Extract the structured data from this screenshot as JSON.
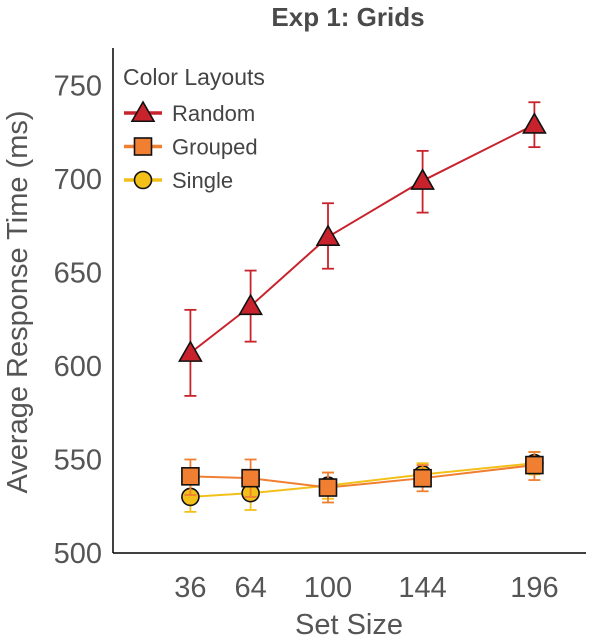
{
  "chart_data": {
    "type": "line",
    "title": "Exp 1: Grids",
    "xlabel": "Set Size",
    "ylabel": "Average Response Time (ms)",
    "x": [
      36,
      64,
      100,
      144,
      196
    ],
    "xlim": [
      0,
      220
    ],
    "ylim": [
      500,
      770
    ],
    "yticks": [
      500,
      550,
      600,
      650,
      700,
      750
    ],
    "grid": false,
    "legend": {
      "title": "Color Layouts",
      "position": "top-left"
    },
    "series": [
      {
        "name": "Random",
        "marker": "triangle",
        "color": "#c8232c",
        "values": [
          607,
          632,
          669,
          699,
          729
        ],
        "err_low": [
          584,
          613,
          652,
          682,
          717
        ],
        "err_high": [
          630,
          651,
          687,
          715,
          741
        ]
      },
      {
        "name": "Grouped",
        "marker": "square",
        "color": "#f07f32",
        "values": [
          541,
          540,
          535,
          540,
          547
        ],
        "err_low": [
          531,
          530,
          527,
          533,
          539
        ],
        "err_high": [
          550,
          550,
          543,
          547,
          554
        ]
      },
      {
        "name": "Single",
        "marker": "circle",
        "color": "#f3c01a",
        "values": [
          530,
          532,
          536,
          542,
          548
        ],
        "err_low": [
          522,
          523,
          529,
          536,
          542
        ],
        "err_high": [
          538,
          541,
          543,
          548,
          554
        ]
      }
    ]
  }
}
